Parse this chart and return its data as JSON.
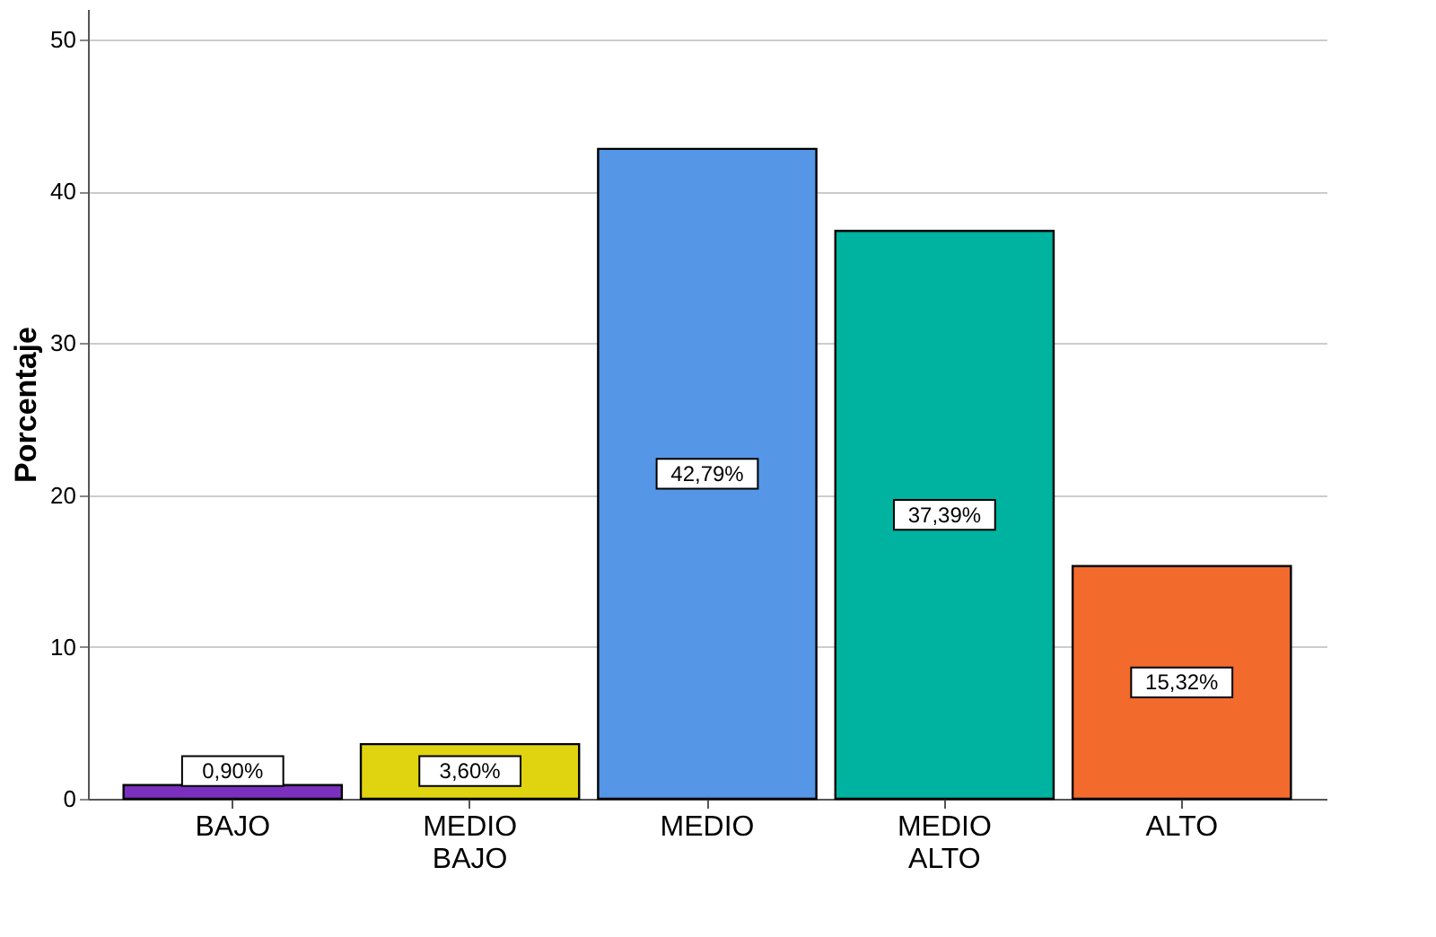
{
  "chart_data": {
    "type": "bar",
    "ylabel": "Porcentaje",
    "categories": [
      "BAJO",
      "MEDIO BAJO",
      "MEDIO",
      "MEDIO ALTO",
      "ALTO"
    ],
    "values": [
      0.9,
      3.6,
      42.79,
      37.39,
      15.32
    ],
    "value_labels": [
      "0,90%",
      "3,60%",
      "42,79%",
      "37,39%",
      "15,32%"
    ],
    "colors": [
      "#7b2fbf",
      "#e0d410",
      "#5596e6",
      "#00b2a0",
      "#f26a2c"
    ],
    "ylim": [
      0,
      52
    ],
    "yticks": [
      0,
      10,
      20,
      30,
      40,
      50
    ],
    "grid": "y"
  }
}
